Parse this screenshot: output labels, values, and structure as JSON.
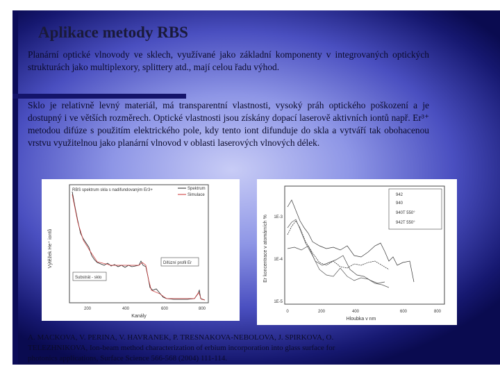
{
  "title": "Aplikace metody RBS",
  "paragraphs": [
    "Planární optické vlnovody ve sklech, využívané jako základní komponenty v integrovaných optických strukturách jako multiplexory, splittery atd., mají celou řadu výhod.",
    "Sklo je relativně levný materiál, má transparentní vlastnosti, vysoký práh optického poškození a je dostupný i ve větších rozměrech. Optické vlastnosti jsou získány dopací laserově aktivních iontů např. Er³⁺ metodou difúze s použitím elektrického pole, kdy tento iont difunduje do skla a vytváří tak obohacenou vrstvu využitelnou jako planární vlnovod v oblasti laserových vlnových délek."
  ],
  "figures": [
    {
      "title": "RBS spektrum skla s nadifundovaným Er3+",
      "legend": [
        "Spektrum",
        "Simulace"
      ],
      "annotations": [
        "Substrát - sklo",
        "Difúzní profil Er"
      ],
      "x_label": "Kanály",
      "y_label": "Výtěžek He⁺ iontů",
      "x_ticks": [
        "200",
        "400",
        "600",
        "800"
      ]
    },
    {
      "legend": [
        "942",
        "940",
        "940T 550°",
        "942T 550°"
      ],
      "x_label": "Hloubka v nm",
      "y_label": "Er koncentrace v atomárních %",
      "x_ticks": [
        "0",
        "200",
        "400",
        "600",
        "800"
      ],
      "y_ticks": [
        "1E-3",
        "1E-4",
        "1E-5"
      ]
    }
  ],
  "reference": "A. MACKOVA, V. PERINA, V. HAVRANEK, P. TRESNAKOVA-NEBOLOVA, J. SPIRKOVA, O. TELEZHNIKOVA, Ion-beam method characterization of erbium incorporation into glass surface for photonics applications, Surface Science 566-568 (2004) 111-114."
}
